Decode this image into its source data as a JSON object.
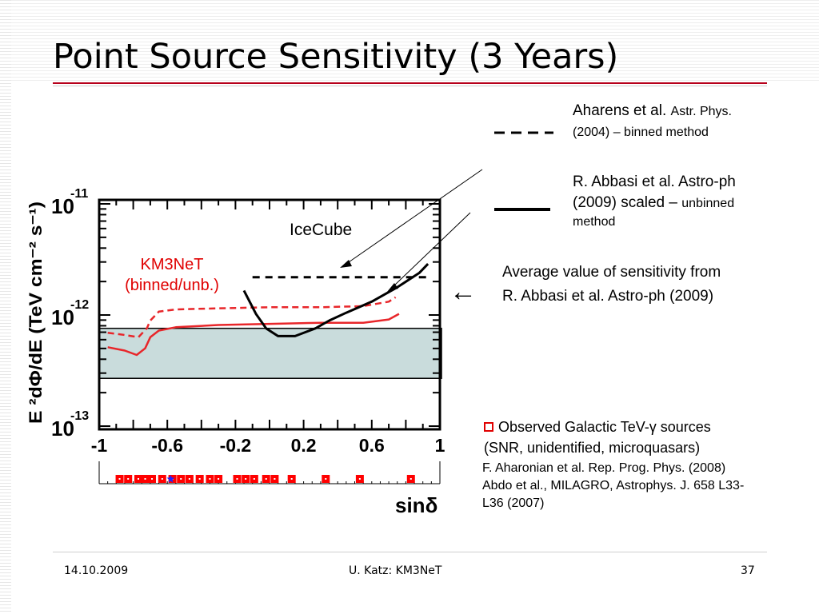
{
  "slide": {
    "title": "Point Source Sensitivity (3 Years)",
    "footer_date": "14.10.2009",
    "footer_center": "U. Katz: KM3NeT",
    "footer_page": "37"
  },
  "legend": {
    "aharens_a": "Aharens et al.",
    "aharens_b": "Astr. Phys.",
    "aharens_c": "(2004) – binned method",
    "abbasi_a": "R. Abbasi et al. Astro-ph",
    "abbasi_b": "(2009) scaled –",
    "abbasi_c": "unbinned",
    "abbasi_d": "method",
    "avg_a": "Average value of sensitivity from",
    "avg_b": "R. Abbasi et al. Astro-ph (2009)",
    "arrow": "←",
    "obs_a": "Observed Galactic TeV-γ sources",
    "obs_b": "(SNR, unidentified, microquasars)",
    "ref1": "F. Aharonian et al. Rep. Prog. Phys. (2008)",
    "ref2": "Abdo et al., MILAGRO, Astrophys. J. 658 L33-",
    "ref3": "L36 (2007)"
  },
  "labels": {
    "km3net_a": "KM3NeT",
    "km3net_b": "(binned/unb.)",
    "icecube": "IceCube"
  },
  "colors": {
    "km3net": "#e8262a",
    "icecube": "#000000",
    "band_fill": "#c9dcdc",
    "rule": "#b7001b"
  },
  "chart_data": {
    "type": "line",
    "xlabel": "sinδ",
    "ylabel": "E ²dΦ/dE (TeV cm⁻² s⁻¹)",
    "xlim": [
      -1,
      1
    ],
    "ylim_log10": [
      -13,
      -11
    ],
    "x_ticks": [
      "-1",
      "-0.6",
      "-0.2",
      "0.2",
      "0.6",
      "1"
    ],
    "y_ticks": [
      {
        "base": "10",
        "exp": "-11"
      },
      {
        "base": "10",
        "exp": "-12"
      },
      {
        "base": "10",
        "exp": "-13"
      }
    ],
    "band": {
      "log10_low": -12.57,
      "log10_high": -12.12
    },
    "series": [
      {
        "name": "KM3NeT binned",
        "style": "dashed",
        "color": "#e8262a",
        "points": [
          [
            -0.95,
            -12.16
          ],
          [
            -0.85,
            -12.18
          ],
          [
            -0.77,
            -12.2
          ],
          [
            -0.72,
            -12.12
          ],
          [
            -0.7,
            -12.05
          ],
          [
            -0.65,
            -11.97
          ],
          [
            -0.55,
            -11.95
          ],
          [
            -0.3,
            -11.94
          ],
          [
            0.0,
            -11.93
          ],
          [
            0.3,
            -11.93
          ],
          [
            0.55,
            -11.92
          ],
          [
            0.7,
            -11.88
          ],
          [
            0.74,
            -11.84
          ]
        ]
      },
      {
        "name": "KM3NeT unbinned",
        "style": "solid",
        "color": "#e8262a",
        "points": [
          [
            -0.95,
            -12.29
          ],
          [
            -0.85,
            -12.32
          ],
          [
            -0.78,
            -12.36
          ],
          [
            -0.73,
            -12.3
          ],
          [
            -0.7,
            -12.2
          ],
          [
            -0.65,
            -12.14
          ],
          [
            -0.55,
            -12.11
          ],
          [
            -0.3,
            -12.09
          ],
          [
            0.0,
            -12.08
          ],
          [
            0.3,
            -12.07
          ],
          [
            0.55,
            -12.07
          ],
          [
            0.7,
            -12.04
          ],
          [
            0.76,
            -11.99
          ]
        ]
      },
      {
        "name": "IceCube Aharens et al. (2004) binned",
        "style": "dashed",
        "color": "#000000",
        "points": [
          [
            -0.1,
            -11.66
          ],
          [
            0.95,
            -11.66
          ]
        ]
      },
      {
        "name": "IceCube R. Abbasi et al. (2009) unbinned",
        "style": "solid",
        "color": "#000000",
        "points": [
          [
            -0.15,
            -11.78
          ],
          [
            -0.08,
            -11.99
          ],
          [
            -0.02,
            -12.12
          ],
          [
            0.05,
            -12.19
          ],
          [
            0.15,
            -12.19
          ],
          [
            0.27,
            -12.12
          ],
          [
            0.35,
            -12.05
          ],
          [
            0.45,
            -11.98
          ],
          [
            0.6,
            -11.88
          ],
          [
            0.75,
            -11.75
          ],
          [
            0.88,
            -11.62
          ],
          [
            0.93,
            -11.54
          ]
        ]
      }
    ],
    "source_markers_sindelta": [
      -0.88,
      -0.83,
      -0.77,
      -0.73,
      -0.69,
      -0.63,
      -0.57,
      -0.52,
      -0.47,
      -0.41,
      -0.35,
      -0.3,
      -0.19,
      -0.14,
      -0.09,
      -0.02,
      0.03,
      0.13,
      0.33,
      0.53,
      0.83
    ],
    "special_marker_sindelta": -0.58
  }
}
